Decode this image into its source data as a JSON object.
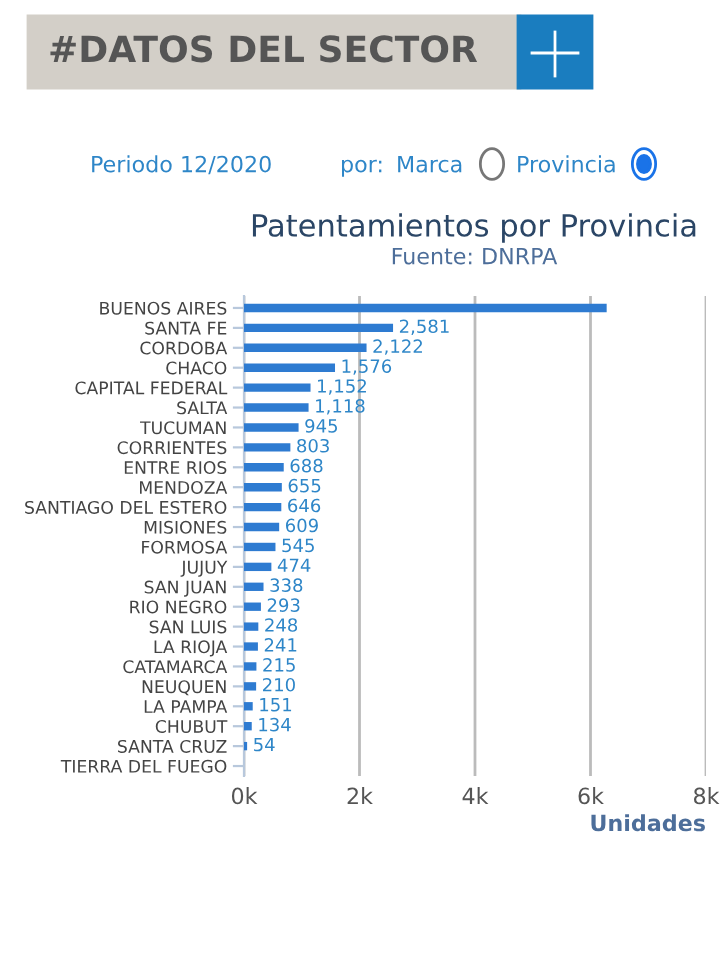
{
  "chart_data": {
    "type": "bar",
    "orientation": "horizontal",
    "title": "Patentamientos por Provincia",
    "subtitle": "Fuente: DNRPA",
    "xlabel": "Unidades",
    "categories": [
      "BUENOS AIRES",
      "SANTA FE",
      "CORDOBA",
      "CHACO",
      "CAPITAL FEDERAL",
      "SALTA",
      "TUCUMAN",
      "CORRIENTES",
      "ENTRE RIOS",
      "MENDOZA",
      "SANTIAGO DEL ESTERO",
      "MISIONES",
      "FORMOSA",
      "JUJUY",
      "SAN JUAN",
      "RIO NEGRO",
      "SAN LUIS",
      "LA RIOJA",
      "CATAMARCA",
      "NEUQUEN",
      "LA PAMPA",
      "CHUBUT",
      "SANTA CRUZ",
      "TIERRA DEL FUEGO"
    ],
    "values": [
      6280,
      2581,
      2122,
      1576,
      1152,
      1118,
      945,
      803,
      688,
      655,
      646,
      609,
      545,
      474,
      338,
      293,
      248,
      241,
      215,
      210,
      151,
      134,
      54,
      0
    ],
    "value_labels": [
      null,
      "2,581",
      "2,122",
      "1,576",
      "1,152",
      "1,118",
      "945",
      "803",
      "688",
      "655",
      "646",
      "609",
      "545",
      "474",
      "338",
      "293",
      "248",
      "241",
      "215",
      "210",
      "151",
      "134",
      "54",
      null
    ],
    "color": "#2e7bd1",
    "xlim": [
      0,
      8000
    ],
    "xticks": [
      {
        "value": 0,
        "label": "0k"
      },
      {
        "value": 2000,
        "label": "2k"
      },
      {
        "value": 4000,
        "label": "4k"
      },
      {
        "value": 6000,
        "label": "6k"
      },
      {
        "value": 8000,
        "label": "8k"
      }
    ],
    "grid": "x",
    "legend": false,
    "annotations": [
      "#DATOS DEL SECTOR",
      "Periodo 12/2020",
      "por:",
      "Marca",
      "Provincia"
    ]
  }
}
